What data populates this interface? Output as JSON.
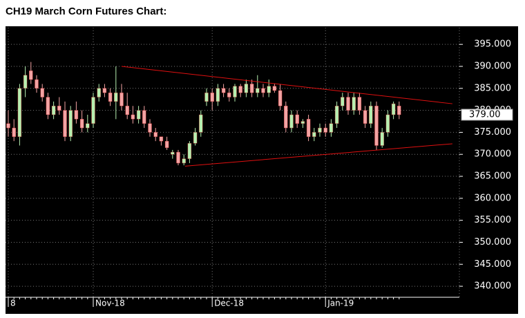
{
  "chart_data": {
    "type": "candlestick",
    "title": "CH19 March Corn Futures Chart:",
    "categories": [
      "8",
      null,
      null,
      null,
      null,
      null,
      null,
      null,
      null,
      null,
      null,
      null,
      null,
      null,
      null,
      "Nov-18",
      null,
      null,
      null,
      null,
      null,
      null,
      null,
      null,
      null,
      null,
      null,
      null,
      null,
      null,
      null,
      null,
      null,
      null,
      null,
      null,
      "Dec-18",
      null,
      null,
      null,
      null,
      null,
      null,
      null,
      null,
      null,
      null,
      null,
      null,
      null,
      null,
      null,
      null,
      null,
      null,
      null,
      "Jan-19",
      null,
      null,
      null,
      null,
      null,
      null,
      null,
      null,
      null,
      null,
      null,
      null,
      null
    ],
    "open": [
      377,
      376,
      374,
      385,
      389,
      387,
      385,
      383,
      379,
      381,
      380,
      374,
      380,
      378,
      376,
      377,
      383,
      385,
      384,
      382,
      384,
      381,
      379,
      378,
      380,
      377,
      375,
      374,
      373,
      370,
      370.5,
      368,
      369,
      372.5,
      375,
      382,
      384,
      382,
      385,
      384,
      383,
      385.5,
      384,
      386,
      384,
      385,
      384,
      385.5,
      384.5,
      381,
      376,
      379,
      377,
      378,
      374,
      375,
      376,
      375,
      377,
      381,
      383,
      380,
      383,
      380,
      377,
      381,
      372,
      375,
      379,
      381
    ],
    "high": [
      380,
      378,
      386,
      390,
      391,
      388,
      386,
      384,
      382,
      383,
      382,
      381,
      382,
      380,
      379,
      384,
      386,
      386,
      385,
      390,
      386,
      384,
      381,
      381,
      381,
      378,
      376,
      374,
      374,
      371,
      371,
      370,
      373,
      376,
      380,
      385,
      385,
      386,
      386,
      385,
      386,
      386,
      387,
      387,
      388,
      386,
      387,
      386,
      386,
      382,
      380,
      380,
      378,
      379,
      376,
      377,
      377,
      378,
      382,
      384,
      384,
      384,
      384,
      381,
      382,
      382,
      376,
      380,
      382,
      382
    ],
    "low": [
      374,
      373,
      372,
      383,
      386,
      384,
      382,
      378,
      378,
      379,
      373,
      373,
      377,
      375,
      375,
      376,
      382,
      383,
      381,
      378,
      380,
      378,
      377,
      377,
      376,
      374,
      373,
      372,
      371,
      369,
      367.5,
      367.5,
      368,
      372,
      374,
      381,
      380,
      381,
      383,
      382,
      382,
      383,
      383,
      383,
      383,
      383,
      383,
      384,
      380,
      375,
      375,
      376,
      376,
      373,
      373,
      374,
      374,
      374,
      376,
      380,
      379,
      379,
      379,
      376,
      376,
      371,
      371.5,
      374,
      378,
      378
    ],
    "close": [
      376,
      374,
      385,
      388,
      387,
      385,
      383,
      379,
      381,
      380,
      374,
      380,
      378,
      376,
      377,
      383,
      385,
      384,
      382,
      384,
      381,
      379,
      378,
      380,
      377,
      375,
      374,
      373,
      371.5,
      370.5,
      368,
      369,
      372.5,
      375,
      379,
      384,
      382,
      385,
      384,
      383,
      385.5,
      384,
      386,
      384,
      385,
      384,
      385.5,
      384.5,
      381,
      376,
      379,
      377,
      377.5,
      374,
      375,
      376,
      375,
      377,
      381,
      383,
      380,
      383,
      380,
      377,
      381,
      372,
      375,
      379,
      381.5,
      379
    ],
    "up_color": "#b6efb0",
    "down_color": "#f3a3a3",
    "ylim": [
      337.5,
      398.8
    ],
    "yticks": [
      {
        "value": 340,
        "label": "340.000"
      },
      {
        "value": 345,
        "label": "345.000"
      },
      {
        "value": 350,
        "label": "350.000"
      },
      {
        "value": 355,
        "label": "355.000"
      },
      {
        "value": 360,
        "label": "360.000"
      },
      {
        "value": 365,
        "label": "365.000"
      },
      {
        "value": 370,
        "label": "370.000"
      },
      {
        "value": 375,
        "label": "375.000"
      },
      {
        "value": 380,
        "label": "380.000"
      },
      {
        "value": 385,
        "label": "385.000"
      },
      {
        "value": 390,
        "label": "390.000"
      },
      {
        "value": 395,
        "label": "395.000"
      }
    ],
    "last_price": {
      "value": 379,
      "label": "379.00"
    },
    "trendlines": [
      {
        "x": [
          20,
          78.4
        ],
        "y": [
          390,
          381.5
        ]
      },
      {
        "x": [
          31.2,
          78.4
        ],
        "y": [
          367.3,
          372.4
        ]
      }
    ],
    "trendline_color": "#e01010",
    "grid": true
  }
}
